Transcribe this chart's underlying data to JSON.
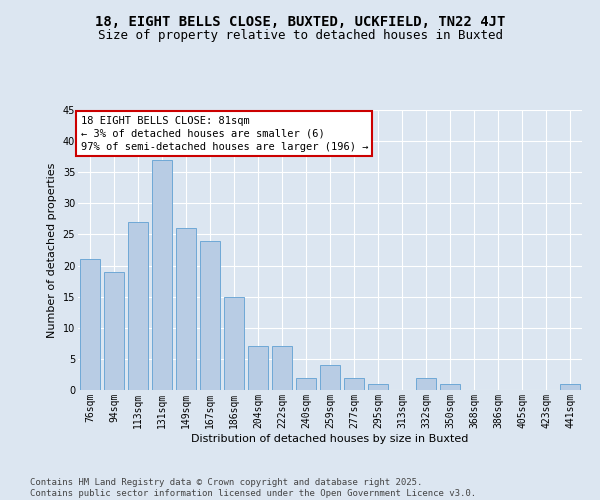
{
  "title_line1": "18, EIGHT BELLS CLOSE, BUXTED, UCKFIELD, TN22 4JT",
  "title_line2": "Size of property relative to detached houses in Buxted",
  "xlabel": "Distribution of detached houses by size in Buxted",
  "ylabel": "Number of detached properties",
  "categories": [
    "76sqm",
    "94sqm",
    "113sqm",
    "131sqm",
    "149sqm",
    "167sqm",
    "186sqm",
    "204sqm",
    "222sqm",
    "240sqm",
    "259sqm",
    "277sqm",
    "295sqm",
    "313sqm",
    "332sqm",
    "350sqm",
    "368sqm",
    "386sqm",
    "405sqm",
    "423sqm",
    "441sqm"
  ],
  "values": [
    21,
    19,
    27,
    37,
    26,
    24,
    15,
    7,
    7,
    2,
    4,
    2,
    1,
    0,
    2,
    1,
    0,
    0,
    0,
    0,
    1
  ],
  "bar_color": "#b8cce4",
  "bar_edge_color": "#6fa8d6",
  "annotation_box_text": "18 EIGHT BELLS CLOSE: 81sqm\n← 3% of detached houses are smaller (6)\n97% of semi-detached houses are larger (196) →",
  "annotation_box_color": "#ffffff",
  "annotation_box_edge_color": "#cc0000",
  "background_color": "#dce6f1",
  "plot_bg_color": "#dce6f1",
  "grid_color": "#ffffff",
  "ylim": [
    0,
    45
  ],
  "yticks": [
    0,
    5,
    10,
    15,
    20,
    25,
    30,
    35,
    40,
    45
  ],
  "footer_text": "Contains HM Land Registry data © Crown copyright and database right 2025.\nContains public sector information licensed under the Open Government Licence v3.0.",
  "title_fontsize": 10,
  "subtitle_fontsize": 9,
  "axis_label_fontsize": 8,
  "tick_fontsize": 7,
  "annotation_fontsize": 7.5,
  "footer_fontsize": 6.5
}
